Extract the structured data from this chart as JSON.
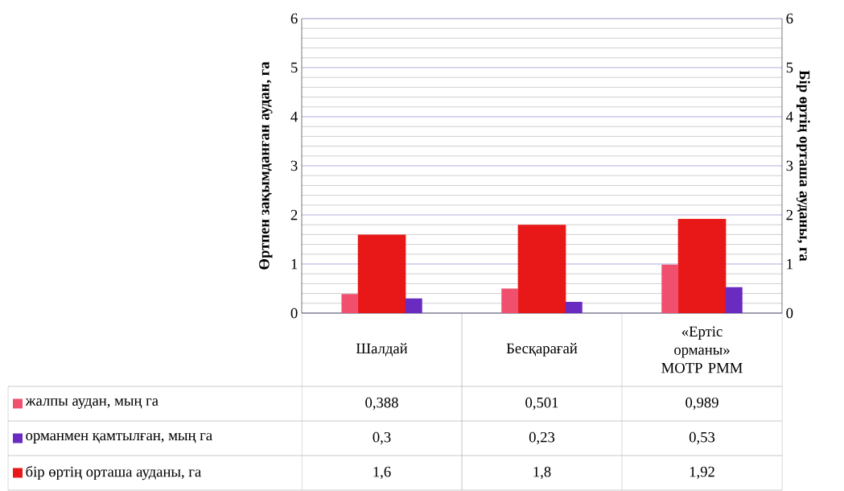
{
  "chart_data": {
    "type": "bar",
    "categories": [
      "Шалдай",
      "Бесқарағай",
      "«Ертіс орманы» МОТР РММ"
    ],
    "ylabel": "Өртпен зақымданған аудан, га",
    "y2label": "Бір өртің орташа ауданы, га",
    "series": [
      {
        "name": "жалпы аудан, мың га",
        "color": "#f0506e",
        "values": [
          0.388,
          0.501,
          0.989
        ],
        "value_labels": [
          "0,388",
          "0,501",
          "0,989"
        ]
      },
      {
        "name": "орманмен қамтылған, мың га",
        "color": "#6a2cc0",
        "values": [
          0.3,
          0.23,
          0.53
        ],
        "value_labels": [
          "0,3",
          "0,23",
          "0,53"
        ]
      },
      {
        "name": "бір өртің орташа ауданы, га",
        "color": "#e81818",
        "axis": "y2",
        "values": [
          1.6,
          1.8,
          1.92
        ],
        "value_labels": [
          "1,6",
          "1,8",
          "1,92"
        ]
      }
    ],
    "ylim": [
      0,
      6
    ],
    "yticks": [
      0,
      1,
      2,
      3,
      4,
      5,
      6
    ],
    "y2lim": [
      0,
      6
    ],
    "y2ticks": [
      0,
      1,
      2,
      3,
      4,
      5,
      6
    ],
    "grid": "y",
    "legend": "bottom"
  }
}
